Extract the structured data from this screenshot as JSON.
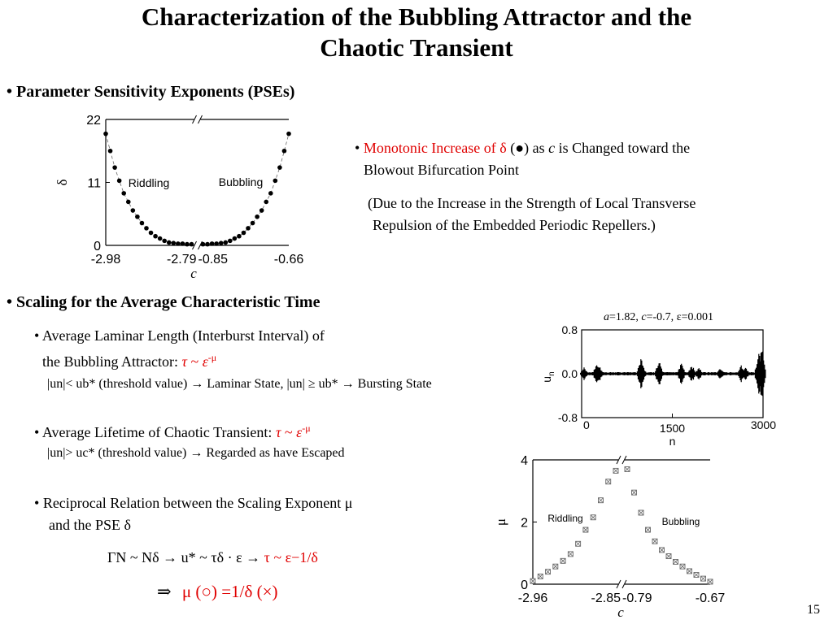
{
  "title_line1": "Characterization of the Bubbling Attractor and the",
  "title_line2": "Chaotic Transient",
  "section1": {
    "bullet": "•",
    "heading": "Parameter Sensitivity Exponents (PSEs)"
  },
  "note1": {
    "bullet": "•",
    "red_text": "Monotonic Increase of δ",
    "paren_open": " (",
    "dot_symbol": "●",
    "rest": ") as ",
    "c": "c",
    "rest2": " is Changed toward the",
    "line2": "Blowout Bifurcation Point",
    "paren_line1": "(Due to the Increase in the Strength of Local Transverse",
    "paren_line2": "Repulsion of the Embedded Periodic Repellers.)"
  },
  "section2": {
    "bullet": "•",
    "heading": "Scaling for the Average Characteristic Time"
  },
  "laminar": {
    "bullet": "•",
    "line1": "Average Laminar Length (Interburst Interval) of",
    "line2": "the Bubbling Attractor:",
    "formula_tau": "τ",
    "formula_sim": "~",
    "formula_eps": "ε",
    "formula_exp": "-μ",
    "condition": "|un|< ub* (threshold value) → Laminar State, |un| ≥ ub* → Bursting State"
  },
  "lifetime": {
    "bullet": "•",
    "line1": "Average Lifetime  of Chaotic Transient:",
    "formula_tau": "τ",
    "formula_sim": "~",
    "formula_eps": "ε",
    "formula_exp": "-μ",
    "condition": "|un|> uc*  (threshold value) → Regarded as have Escaped"
  },
  "reciprocal": {
    "bullet": "•",
    "line1": "Reciprocal Relation between the Scaling Exponent μ",
    "line2": "and the PSE δ",
    "equation": "ΓN ~ Nδ → u* ~ τδ · ε →",
    "equation_red": "τ ~ ε−1/δ",
    "result_arrow": "⇒",
    "result_red": "μ (○) =1/δ (×)"
  },
  "page_number": "15",
  "chart_data": [
    {
      "type": "scatter",
      "panel": "PSE delta vs c",
      "ylabel": "δ",
      "xlabel": "c",
      "ylim": [
        0,
        22
      ],
      "yticks": [
        "0",
        "11",
        "22"
      ],
      "xticks": [
        "-2.98",
        "-2.79",
        "-0.85",
        "-0.66"
      ],
      "broken_axis": true,
      "annotations": [
        "Riddling",
        "Bubbling"
      ],
      "segments": [
        {
          "x": [
            -2.98,
            -2.97,
            -2.96,
            -2.95,
            -2.94,
            -2.93,
            -2.92,
            -2.91,
            -2.9,
            -2.89,
            -2.88,
            -2.87,
            -2.86,
            -2.85,
            -2.84,
            -2.83,
            -2.82,
            -2.81,
            -2.8,
            -2.79
          ],
          "values": [
            19.5,
            16.5,
            13.6,
            11.3,
            9.1,
            7.6,
            6.1,
            5.0,
            3.9,
            3.0,
            2.2,
            1.6,
            1.2,
            0.8,
            0.5,
            0.4,
            0.3,
            0.3,
            0.2,
            0.2
          ]
        },
        {
          "x": [
            -0.85,
            -0.84,
            -0.83,
            -0.82,
            -0.81,
            -0.8,
            -0.79,
            -0.78,
            -0.77,
            -0.76,
            -0.75,
            -0.74,
            -0.73,
            -0.72,
            -0.71,
            -0.7,
            -0.69,
            -0.68,
            -0.67,
            -0.66
          ],
          "values": [
            0.2,
            0.2,
            0.3,
            0.3,
            0.4,
            0.5,
            0.8,
            1.2,
            1.6,
            2.2,
            3.0,
            3.9,
            5.0,
            6.1,
            7.6,
            9.1,
            11.3,
            13.6,
            16.5,
            19.5
          ]
        }
      ]
    },
    {
      "type": "line",
      "panel": "time series",
      "title_a": "a",
      "title_a_val": "=1.82, ",
      "title_c": "c",
      "title_c_val": "=-0.7, ",
      "title_eps": "ε",
      "title_eps_val": "=0.001",
      "ylabel": "u",
      "ylabel_sub": "n",
      "xlabel": "n",
      "ylim": [
        -0.8,
        0.8
      ],
      "xlim": [
        0,
        3000
      ],
      "yticks": [
        "0.8",
        "0.0",
        "-0.8"
      ],
      "xticks": [
        "0",
        "1500",
        "3000"
      ],
      "bursts": [
        {
          "n": 40,
          "amp": 0.12
        },
        {
          "n": 250,
          "amp": 0.2
        },
        {
          "n": 290,
          "amp": 0.16
        },
        {
          "n": 980,
          "amp": 0.34
        },
        {
          "n": 1000,
          "amp": 0.2
        },
        {
          "n": 1280,
          "amp": 0.25
        },
        {
          "n": 1650,
          "amp": 0.22
        },
        {
          "n": 1820,
          "amp": 0.18
        },
        {
          "n": 1940,
          "amp": 0.12
        },
        {
          "n": 2300,
          "amp": 0.12
        },
        {
          "n": 2640,
          "amp": 0.18
        },
        {
          "n": 2710,
          "amp": 0.12
        },
        {
          "n": 2930,
          "amp": 0.45
        },
        {
          "n": 2980,
          "amp": 0.55
        }
      ]
    },
    {
      "type": "scatter",
      "panel": "mu vs c",
      "ylabel": "μ",
      "xlabel": "c",
      "ylim": [
        0,
        4
      ],
      "yticks": [
        "0",
        "2",
        "4"
      ],
      "xticks": [
        "-2.96",
        "-2.85",
        "-0.79",
        "-0.67"
      ],
      "broken_axis": true,
      "annotations": [
        "Riddling",
        "Bubbling"
      ],
      "segments": [
        {
          "x": [
            -2.96,
            -2.95,
            -2.94,
            -2.93,
            -2.92,
            -2.91,
            -2.9,
            -2.89,
            -2.88,
            -2.87,
            -2.86,
            -2.85
          ],
          "values": [
            0.1,
            0.25,
            0.4,
            0.57,
            0.75,
            0.97,
            1.3,
            1.75,
            2.15,
            2.7,
            3.3,
            3.65
          ]
        },
        {
          "x": [
            -0.79,
            -0.78,
            -0.77,
            -0.76,
            -0.75,
            -0.74,
            -0.73,
            -0.72,
            -0.71,
            -0.7,
            -0.69,
            -0.68,
            -0.67
          ],
          "values": [
            3.7,
            2.95,
            2.3,
            1.75,
            1.38,
            1.1,
            0.9,
            0.72,
            0.57,
            0.42,
            0.3,
            0.18,
            0.08
          ]
        }
      ]
    }
  ]
}
